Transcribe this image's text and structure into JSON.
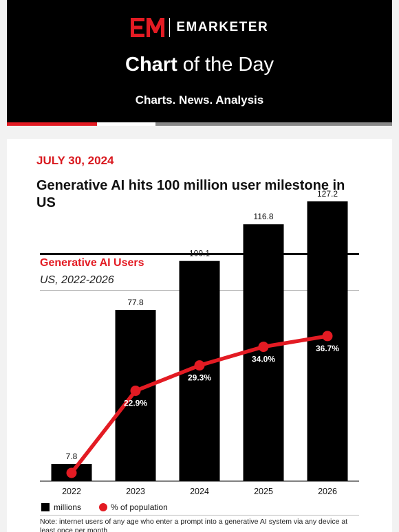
{
  "header": {
    "brand": "EMARKETER",
    "title_bold": "Chart",
    "title_rest": " of the Day",
    "tagline": "Charts. News. Analysis",
    "colors": {
      "background": "#000000",
      "accent": "#e31b23"
    }
  },
  "article": {
    "date": "JULY 30, 2024",
    "headline": "Generative AI hits 100 million user milestone in US"
  },
  "chart_data": {
    "type": "bar",
    "title": "Generative AI Users",
    "subtitle": "US, 2022-2026",
    "categories": [
      "2022",
      "2023",
      "2024",
      "2025",
      "2026"
    ],
    "series": [
      {
        "name": "millions",
        "type": "bar",
        "values": [
          7.8,
          77.8,
          100.1,
          116.8,
          127.2
        ],
        "labels": [
          "7.8",
          "77.8",
          "100.1",
          "116.8",
          "127.2"
        ],
        "color": "#000000"
      },
      {
        "name": "% of population",
        "type": "line",
        "values": [
          null,
          22.9,
          29.3,
          34.0,
          36.7
        ],
        "labels": [
          "",
          "22.9%",
          "29.3%",
          "34.0%",
          "36.7%"
        ],
        "color": "#e31b23"
      }
    ],
    "ylim": [
      0,
      135
    ],
    "grid": false,
    "legend": "bottom-left",
    "note": "Note: internet users of any age who enter a prompt into a generative AI system via any device at least once per month"
  }
}
